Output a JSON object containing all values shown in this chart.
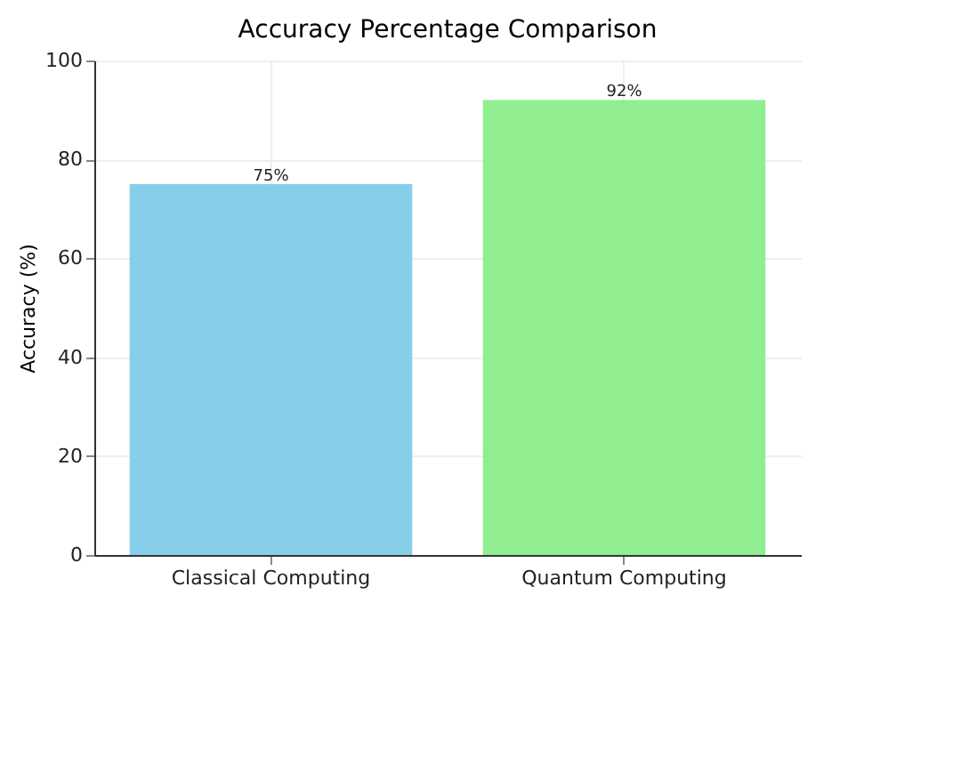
{
  "chart_data": {
    "type": "bar",
    "title": "Accuracy Percentage Comparison",
    "ylabel": "Accuracy (%)",
    "categories": [
      "Classical Computing",
      "Quantum Computing"
    ],
    "values": [
      75,
      92
    ],
    "colors": [
      "#87ceeb",
      "#90ee90"
    ],
    "value_labels": [
      "75%",
      "92%"
    ],
    "ylim": [
      0,
      100
    ],
    "yticks": [
      0,
      20,
      40,
      60,
      80,
      100
    ],
    "grid": true
  }
}
